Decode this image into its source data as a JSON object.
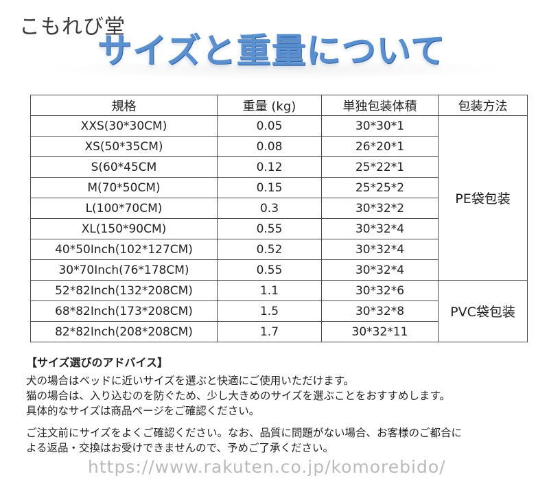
{
  "header": {
    "shop_name": "こもれび堂",
    "title": "サイズと重量について"
  },
  "table": {
    "headers": [
      "規格",
      "重量 (kg)",
      "単独包装体積",
      "包装方法"
    ],
    "rows": [
      {
        "spec": "XXS(30*30CM)",
        "weight": "0.05",
        "volume": "30*30*1"
      },
      {
        "spec": "XS(50*35CM)",
        "weight": "0.08",
        "volume": "26*20*1"
      },
      {
        "spec": "S(60*45CM",
        "weight": "0.12",
        "volume": "25*22*1"
      },
      {
        "spec": "M(70*50CM)",
        "weight": "0.15",
        "volume": "25*25*2"
      },
      {
        "spec": "L(100*70CM)",
        "weight": "0.3",
        "volume": "30*32*2"
      },
      {
        "spec": "XL(150*90CM)",
        "weight": "0.55",
        "volume": "30*32*4"
      },
      {
        "spec": "40*50Inch(102*127CM)",
        "weight": "0.52",
        "volume": "30*32*4"
      },
      {
        "spec": "30*70Inch(76*178CM)",
        "weight": "0.55",
        "volume": "30*32*4"
      },
      {
        "spec": "52*82Inch(132*208CM)",
        "weight": "1.1",
        "volume": "30*32*6"
      },
      {
        "spec": "68*82Inch(173*208CM)",
        "weight": "1.5",
        "volume": "30*32*8"
      },
      {
        "spec": "82*82Inch(208*208CM)",
        "weight": "1.7",
        "volume": "30*32*11"
      }
    ],
    "packaging": [
      {
        "label": "PE袋包装"
      },
      {
        "label": "PVC袋包装"
      }
    ]
  },
  "advice": {
    "title": "【サイズ選びのアドバイス】",
    "lines": [
      "犬の場合はベッドに近いサイズを選ぶと快適にご使用いただけます。",
      "猫の場合は、入り込むのを防ぐため、少し大きめのサイズを選ぶことをおすすめします。",
      "具体的なサイズは商品ページをご確認ください。"
    ],
    "note_lines": [
      "ご注文前にサイズをよくご確認ください。なお、品質に問題がない場合、お客様のご都合に",
      "よる返品・交換はお受けできませんので、予めご了承ください。"
    ]
  },
  "watermark": "https://www.rakuten.co.jp/komorebido/"
}
